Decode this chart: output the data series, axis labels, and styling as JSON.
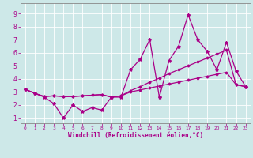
{
  "xlabel": "Windchill (Refroidissement éolien,°C)",
  "bg_color": "#cde8e8",
  "line_color": "#aa0088",
  "xlim": [
    -0.5,
    23.5
  ],
  "ylim": [
    0.6,
    9.8
  ],
  "xticks": [
    0,
    1,
    2,
    3,
    4,
    5,
    6,
    7,
    8,
    9,
    10,
    11,
    12,
    13,
    14,
    15,
    16,
    17,
    18,
    19,
    20,
    21,
    22,
    23
  ],
  "yticks": [
    1,
    2,
    3,
    4,
    5,
    6,
    7,
    8,
    9
  ],
  "line1_x": [
    0,
    1,
    2,
    3,
    4,
    5,
    6,
    7,
    8,
    9,
    10,
    11,
    12,
    13,
    14,
    15,
    16,
    17,
    18,
    19,
    20,
    21,
    22,
    23
  ],
  "line1_y": [
    3.2,
    2.9,
    2.6,
    2.1,
    1.0,
    2.0,
    1.5,
    1.8,
    1.6,
    2.6,
    2.6,
    4.7,
    5.5,
    7.0,
    2.6,
    5.4,
    6.5,
    8.9,
    7.0,
    6.1,
    4.7,
    6.8,
    4.6,
    3.4
  ],
  "line2_x": [
    0,
    1,
    2,
    3,
    4,
    5,
    6,
    7,
    8,
    9,
    10,
    11,
    12,
    13,
    14,
    15,
    16,
    17,
    18,
    19,
    20,
    21,
    22,
    23
  ],
  "line2_y": [
    3.2,
    2.9,
    2.65,
    2.7,
    2.65,
    2.65,
    2.7,
    2.75,
    2.8,
    2.6,
    2.7,
    3.0,
    3.15,
    3.3,
    3.45,
    3.6,
    3.75,
    3.9,
    4.05,
    4.2,
    4.35,
    4.5,
    3.55,
    3.4
  ],
  "line3_x": [
    0,
    1,
    2,
    3,
    4,
    5,
    6,
    7,
    8,
    9,
    10,
    11,
    12,
    13,
    14,
    15,
    16,
    17,
    18,
    19,
    20,
    21,
    22,
    23
  ],
  "line3_y": [
    3.2,
    2.9,
    2.65,
    2.7,
    2.65,
    2.65,
    2.7,
    2.75,
    2.8,
    2.6,
    2.7,
    3.1,
    3.4,
    3.75,
    4.05,
    4.4,
    4.7,
    5.0,
    5.3,
    5.6,
    5.9,
    6.2,
    3.55,
    3.4
  ]
}
